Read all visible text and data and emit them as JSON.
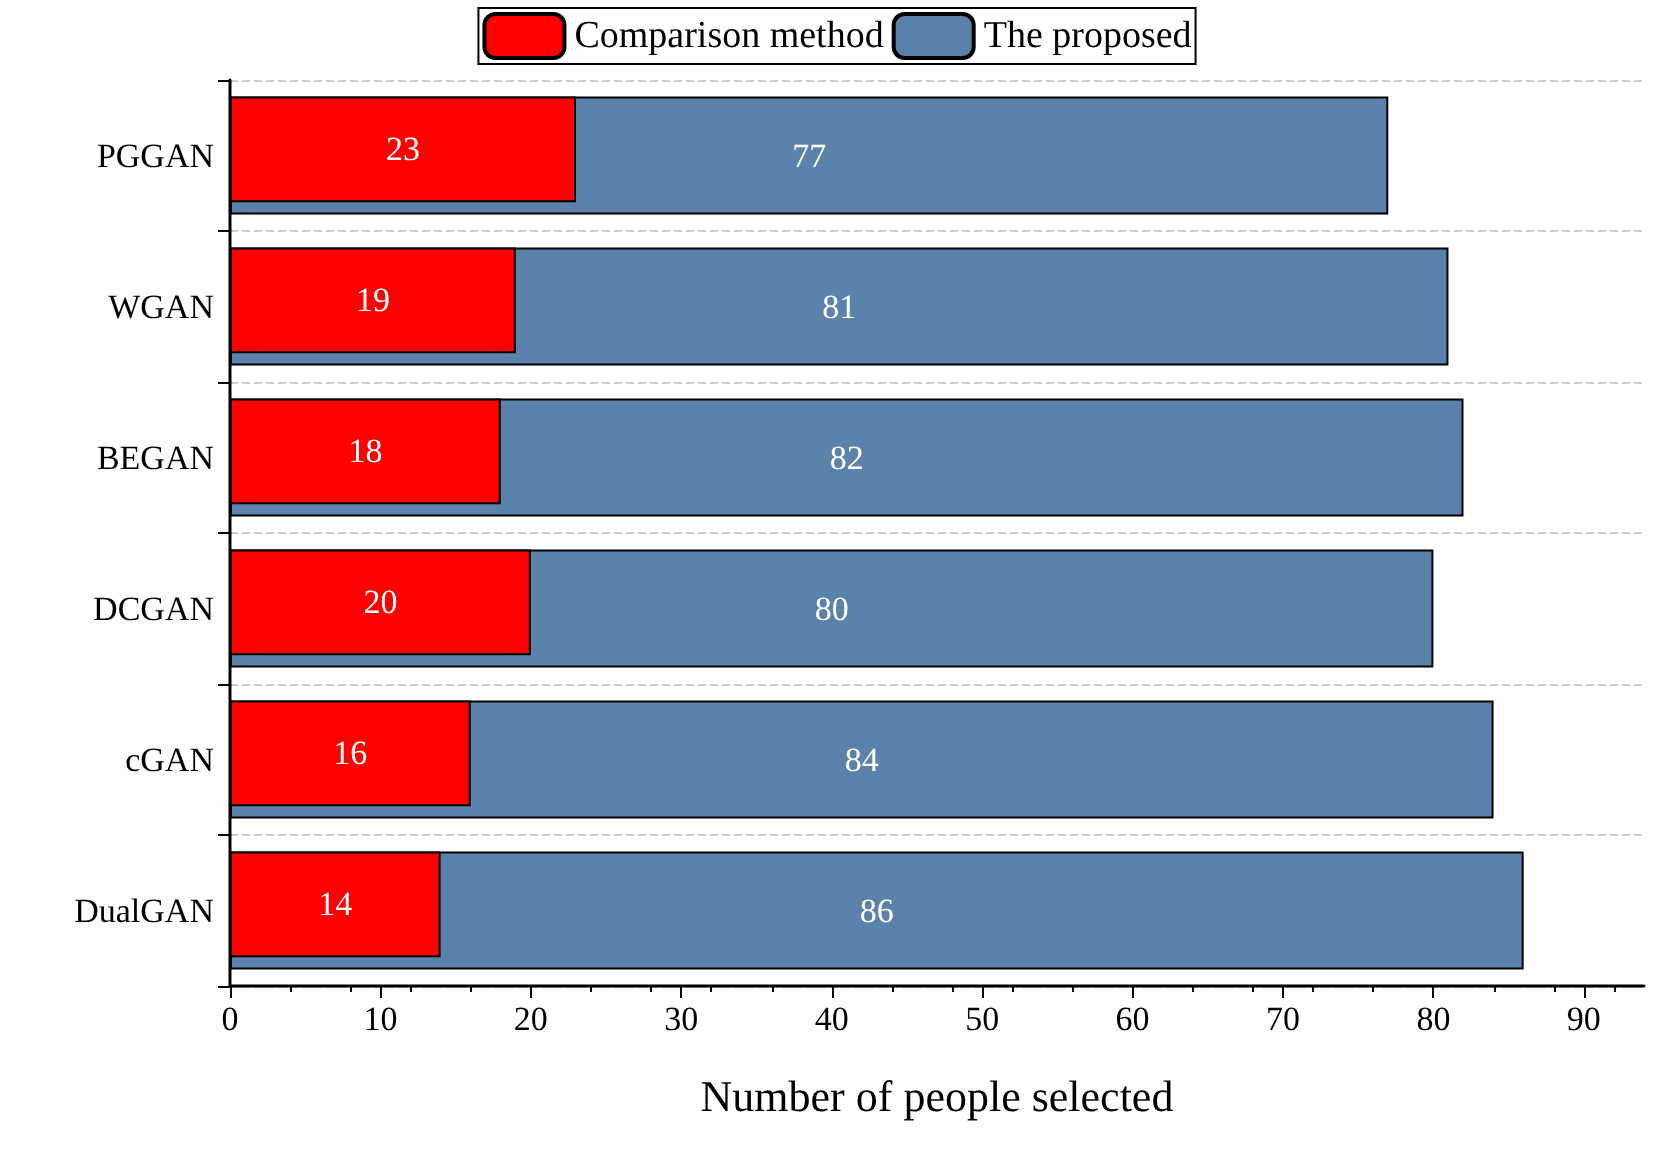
{
  "chart_data": {
    "type": "bar",
    "orientation": "horizontal",
    "xlabel": "Number of people selected",
    "categories": [
      "PGGAN",
      "WGAN",
      "BEGAN",
      "DCGAN",
      "cGAN",
      "DualGAN"
    ],
    "series": [
      {
        "name": "Comparison method",
        "color": "#ff0000",
        "values": [
          23,
          19,
          18,
          20,
          16,
          14
        ]
      },
      {
        "name": "The proposed",
        "color": "#5b82aa",
        "values": [
          77,
          81,
          82,
          80,
          84,
          86
        ]
      }
    ],
    "xlim": [
      0,
      94
    ],
    "xticks": [
      0,
      10,
      20,
      30,
      40,
      50,
      60,
      70,
      80,
      90
    ],
    "grid": "y",
    "legend": "top",
    "data_labels": true
  }
}
